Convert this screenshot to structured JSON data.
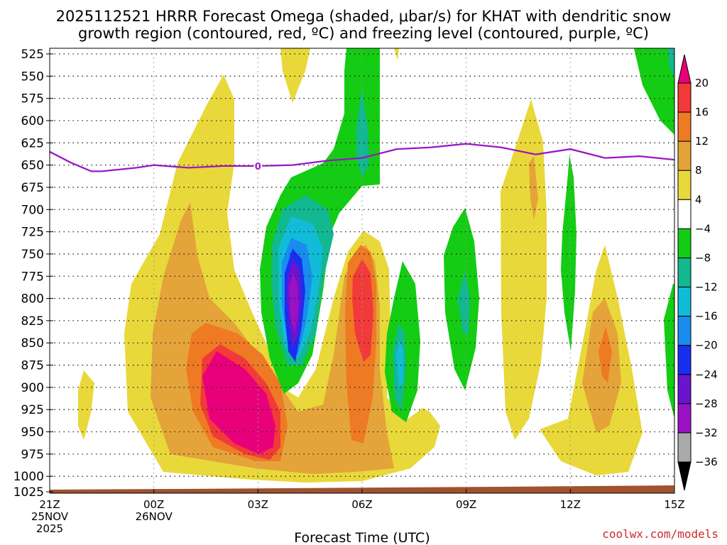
{
  "chart_data": {
    "type": "heatmap",
    "title_lines": [
      "2025112521 HRRR Forecast Omega (shaded, μbar/s) for KHAT with dendritic snow",
      "growth region (contoured, red, ºC) and freezing level (contoured, purple, ºC)"
    ],
    "xlabel": "Forecast Time (UTC)",
    "x_ticks": [
      {
        "t": 0,
        "lines": [
          "21Z",
          "25NOV",
          "2025"
        ]
      },
      {
        "t": 3,
        "lines": [
          "00Z",
          "26NOV"
        ]
      },
      {
        "t": 6,
        "lines": [
          "03Z"
        ]
      },
      {
        "t": 9,
        "lines": [
          "06Z"
        ]
      },
      {
        "t": 12,
        "lines": [
          "09Z"
        ]
      },
      {
        "t": 15,
        "lines": [
          "12Z"
        ]
      },
      {
        "t": 18,
        "lines": [
          "15Z"
        ]
      }
    ],
    "x_range_hours": [
      0,
      18
    ],
    "y_levels_mb": [
      525,
      550,
      575,
      600,
      625,
      650,
      675,
      700,
      725,
      750,
      775,
      800,
      825,
      850,
      875,
      900,
      925,
      950,
      975,
      1000,
      1025
    ],
    "y_range_mb": [
      525,
      1025
    ],
    "colorbar_labels": [
      "20",
      "16",
      "12",
      "8",
      "4",
      "−4",
      "−8",
      "−12",
      "−16",
      "−20",
      "−24",
      "−28",
      "−32",
      "−36"
    ],
    "freezing_level_contour_label": "0",
    "freezing_level_mb": [
      [
        0,
        635
      ],
      [
        0.6,
        647
      ],
      [
        1.2,
        657
      ],
      [
        1.5,
        657
      ],
      [
        2.5,
        653
      ],
      [
        3,
        650
      ],
      [
        4,
        653
      ],
      [
        5,
        651
      ],
      [
        6,
        651
      ],
      [
        7,
        650
      ],
      [
        8,
        645
      ],
      [
        9,
        642
      ],
      [
        10,
        632
      ],
      [
        11,
        630
      ],
      [
        12,
        626
      ],
      [
        13,
        630
      ],
      [
        14,
        638
      ],
      [
        15,
        632
      ],
      [
        16,
        642
      ],
      [
        17,
        640
      ],
      [
        18,
        644
      ]
    ],
    "colors": {
      "magenta": "#e8007a",
      "red": "#f23a3a",
      "orange": "#ef7a24",
      "lightorange": "#e4a43a",
      "yellow": "#e8d83a",
      "green": "#14cc14",
      "teal": "#12b890",
      "cyan": "#12bcd8",
      "lightblue": "#1a8cf0",
      "blue": "#1a2ef0",
      "purple": "#6a14d0",
      "violet": "#9a12c4",
      "gray": "#aaaaaa",
      "ground": "#a0522d",
      "freezing": "#9a18c4"
    },
    "credit": "coolwx.com/models"
  }
}
